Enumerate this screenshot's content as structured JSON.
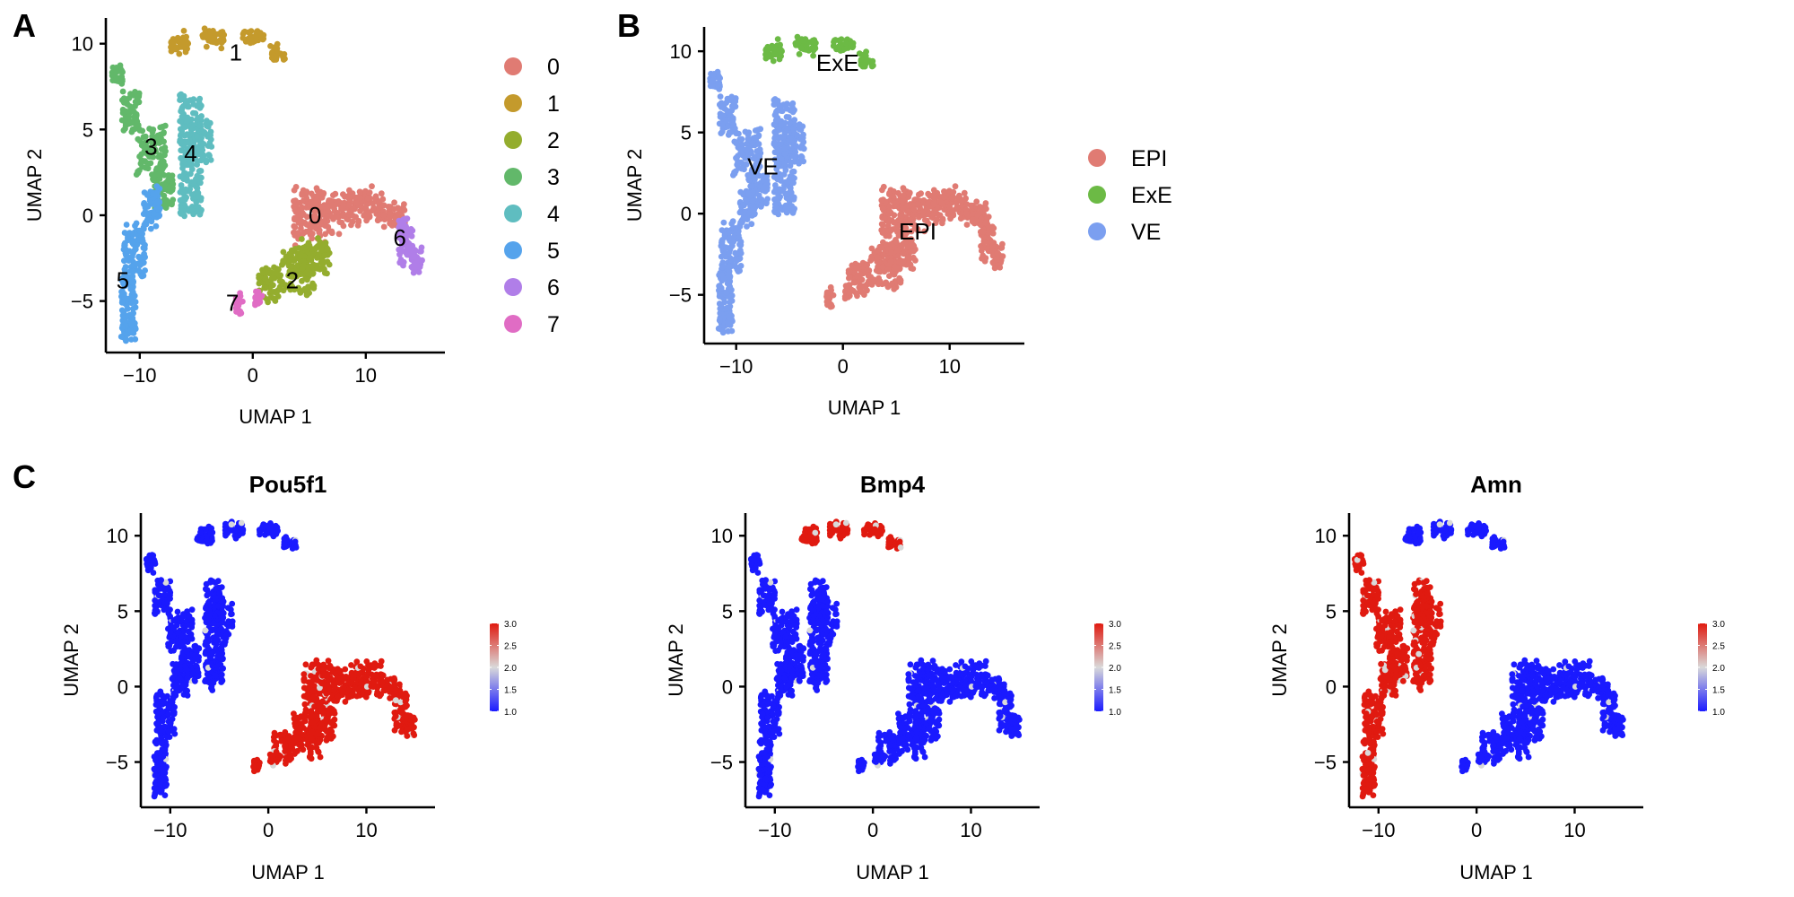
{
  "panel_letters": {
    "a": "A",
    "b": "B",
    "c": "C"
  },
  "chart_data": [
    {
      "id": "A",
      "type": "scatter",
      "xlabel": "UMAP 1",
      "ylabel": "UMAP 2",
      "xlim": [
        -13,
        17
      ],
      "ylim": [
        -8,
        11.5
      ],
      "xticks": [
        -10,
        0,
        10
      ],
      "yticks": [
        -5,
        0,
        5,
        10
      ],
      "tick_labels_x": [
        "−10",
        "0",
        "10"
      ],
      "tick_labels_y": [
        "−5",
        "0",
        "5",
        "10"
      ],
      "legend": {
        "placement": "right",
        "entries": [
          {
            "label": "0",
            "color": "#e07b73"
          },
          {
            "label": "1",
            "color": "#c49a2c"
          },
          {
            "label": "2",
            "color": "#94ad2e"
          },
          {
            "label": "3",
            "color": "#62b86a"
          },
          {
            "label": "4",
            "color": "#5fbdc0"
          },
          {
            "label": "5",
            "color": "#55a3ec"
          },
          {
            "label": "6",
            "color": "#b07ee8"
          },
          {
            "label": "7",
            "color": "#e06cc4"
          }
        ]
      },
      "cluster_labels": [
        {
          "text": "1",
          "x": -1.5,
          "y": 9.5
        },
        {
          "text": "3",
          "x": -9.0,
          "y": 4.0
        },
        {
          "text": "4",
          "x": -5.5,
          "y": 3.6
        },
        {
          "text": "0",
          "x": 5.5,
          "y": 0.0
        },
        {
          "text": "6",
          "x": 13.0,
          "y": -1.3
        },
        {
          "text": "5",
          "x": -11.5,
          "y": -3.8
        },
        {
          "text": "2",
          "x": 3.5,
          "y": -3.8
        },
        {
          "text": "7",
          "x": -1.8,
          "y": -5.1
        }
      ]
    },
    {
      "id": "B",
      "type": "scatter",
      "xlabel": "UMAP 1",
      "ylabel": "UMAP 2",
      "xlim": [
        -13,
        17
      ],
      "ylim": [
        -8,
        11.5
      ],
      "xticks": [
        -10,
        0,
        10
      ],
      "yticks": [
        -5,
        0,
        5,
        10
      ],
      "tick_labels_x": [
        "−10",
        "0",
        "10"
      ],
      "tick_labels_y": [
        "−5",
        "0",
        "5",
        "10"
      ],
      "legend": {
        "placement": "right",
        "entries": [
          {
            "label": "EPI",
            "color": "#e07b73"
          },
          {
            "label": "ExE",
            "color": "#6cba45"
          },
          {
            "label": "VE",
            "color": "#7b9ff0"
          }
        ]
      },
      "cluster_labels": [
        {
          "text": "ExE",
          "x": -0.5,
          "y": 9.3
        },
        {
          "text": "VE",
          "x": -7.5,
          "y": 2.9
        },
        {
          "text": "EPI",
          "x": 7.0,
          "y": -1.1
        }
      ]
    },
    {
      "id": "C1",
      "type": "scatter",
      "title": "Pou5f1",
      "xlabel": "UMAP 1",
      "ylabel": "UMAP 2",
      "xlim": [
        -13,
        17
      ],
      "ylim": [
        -8,
        11.5
      ],
      "xticks": [
        -10,
        0,
        10
      ],
      "yticks": [
        -5,
        0,
        5,
        10
      ],
      "tick_labels_x": [
        "−10",
        "0",
        "10"
      ],
      "tick_labels_y": [
        "−5",
        "0",
        "5",
        "10"
      ],
      "expression_high_in": [
        "EPI"
      ],
      "colorbar": {
        "min": 1.0,
        "max": 3.0,
        "ticks": [
          "1.0",
          "1.5",
          "2.0",
          "2.5",
          "3.0"
        ],
        "low_color": "#1a1aff",
        "mid_color": "#d9d9d9",
        "high_color": "#e01a10"
      }
    },
    {
      "id": "C2",
      "type": "scatter",
      "title": "Bmp4",
      "xlabel": "UMAP 1",
      "ylabel": "UMAP 2",
      "xlim": [
        -13,
        17
      ],
      "ylim": [
        -8,
        11.5
      ],
      "xticks": [
        -10,
        0,
        10
      ],
      "yticks": [
        -5,
        0,
        5,
        10
      ],
      "tick_labels_x": [
        "−10",
        "0",
        "10"
      ],
      "tick_labels_y": [
        "−5",
        "0",
        "5",
        "10"
      ],
      "expression_high_in": [
        "ExE"
      ],
      "colorbar": {
        "min": 1.0,
        "max": 3.0,
        "ticks": [
          "1.0",
          "1.5",
          "2.0",
          "2.5",
          "3.0"
        ],
        "low_color": "#1a1aff",
        "mid_color": "#d9d9d9",
        "high_color": "#e01a10"
      }
    },
    {
      "id": "C3",
      "type": "scatter",
      "title": "Amn",
      "xlabel": "UMAP 1",
      "ylabel": "UMAP 2",
      "xlim": [
        -13,
        17
      ],
      "ylim": [
        -8,
        11.5
      ],
      "xticks": [
        -10,
        0,
        10
      ],
      "yticks": [
        -5,
        0,
        5,
        10
      ],
      "tick_labels_x": [
        "−10",
        "0",
        "10"
      ],
      "tick_labels_y": [
        "−5",
        "0",
        "5",
        "10"
      ],
      "expression_high_in": [
        "VE"
      ],
      "colorbar": {
        "min": 1.0,
        "max": 3.0,
        "ticks": [
          "1.0",
          "1.5",
          "2.0",
          "2.5",
          "3.0"
        ],
        "low_color": "#1a1aff",
        "mid_color": "#d9d9d9",
        "high_color": "#e01a10"
      }
    }
  ]
}
